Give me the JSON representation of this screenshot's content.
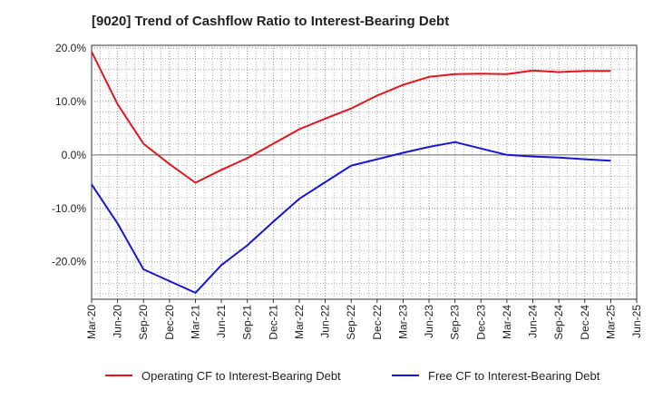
{
  "chart_data": {
    "type": "line",
    "title": "[9020]  Trend of Cashflow Ratio to Interest-Bearing Debt",
    "xlabel": "",
    "ylabel": "",
    "ylim": [
      -27,
      20.5
    ],
    "yticks": [
      20,
      10,
      0,
      -10,
      -20
    ],
    "ytick_labels": [
      "20.0%",
      "10.0%",
      "0.0%",
      "-10.0%",
      "-20.0%"
    ],
    "x_tick_labels": [
      "Mar-20",
      "Jun-20",
      "Sep-20",
      "Dec-20",
      "Mar-21",
      "Jun-21",
      "Sep-21",
      "Dec-21",
      "Mar-22",
      "Jun-22",
      "Sep-22",
      "Dec-22",
      "Mar-23",
      "Jun-23",
      "Sep-23",
      "Dec-23",
      "Mar-24",
      "Jun-24",
      "Sep-24",
      "Dec-24",
      "Mar-25",
      "Jun-25"
    ],
    "x": [
      "Mar-20",
      "Jun-20",
      "Sep-20",
      "Dec-20",
      "Mar-21",
      "Jun-21",
      "Sep-21",
      "Dec-21",
      "Mar-22",
      "Jun-22",
      "Sep-22",
      "Dec-22",
      "Mar-23",
      "Jun-23",
      "Sep-23",
      "Dec-23",
      "Mar-24",
      "Jun-24",
      "Sep-24",
      "Dec-24",
      "Mar-25"
    ],
    "grid": true,
    "legend_position": "bottom",
    "series": [
      {
        "name": "Operating CF to Interest-Bearing Debt",
        "color": "#e8141c",
        "values": [
          19.3,
          9.5,
          2.1,
          -1.7,
          -5.2,
          -2.8,
          -0.6,
          2.1,
          4.8,
          6.8,
          8.7,
          11.1,
          13.1,
          14.6,
          15.1,
          15.2,
          15.1,
          15.8,
          15.5,
          15.7,
          15.7
        ]
      },
      {
        "name": "Free CF to Interest-Bearing Debt",
        "color": "#1616d4",
        "values": [
          -5.5,
          -12.8,
          -21.4,
          -23.6,
          -25.8,
          -20.6,
          -16.9,
          -12.5,
          -8.2,
          -5.1,
          -2.0,
          -0.8,
          0.4,
          1.5,
          2.4,
          1.2,
          0.0,
          -0.3,
          -0.5,
          -0.8,
          -1.1
        ]
      }
    ]
  }
}
